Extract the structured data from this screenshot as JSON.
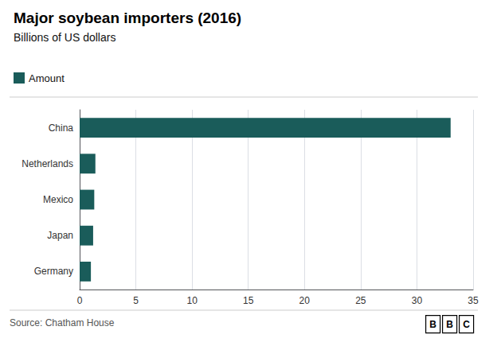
{
  "chart_data": {
    "type": "bar",
    "orientation": "horizontal",
    "title": "Major soybean importers (2016)",
    "subtitle": "Billions of US dollars",
    "source": "Source: Chatham House",
    "annotations": [
      "B",
      "B",
      "C"
    ],
    "categories": [
      "Germany",
      "Japan",
      "Mexico",
      "Netherlands",
      "China"
    ],
    "series": [
      {
        "name": "Amount",
        "color": "#1a5c5a",
        "values": [
          1.0,
          1.2,
          1.3,
          1.4,
          33.0
        ]
      }
    ],
    "xlim": [
      0,
      35
    ],
    "xticks": [
      0,
      5,
      10,
      15,
      20,
      25,
      30,
      35
    ],
    "grid": true,
    "legend": "upper left"
  }
}
